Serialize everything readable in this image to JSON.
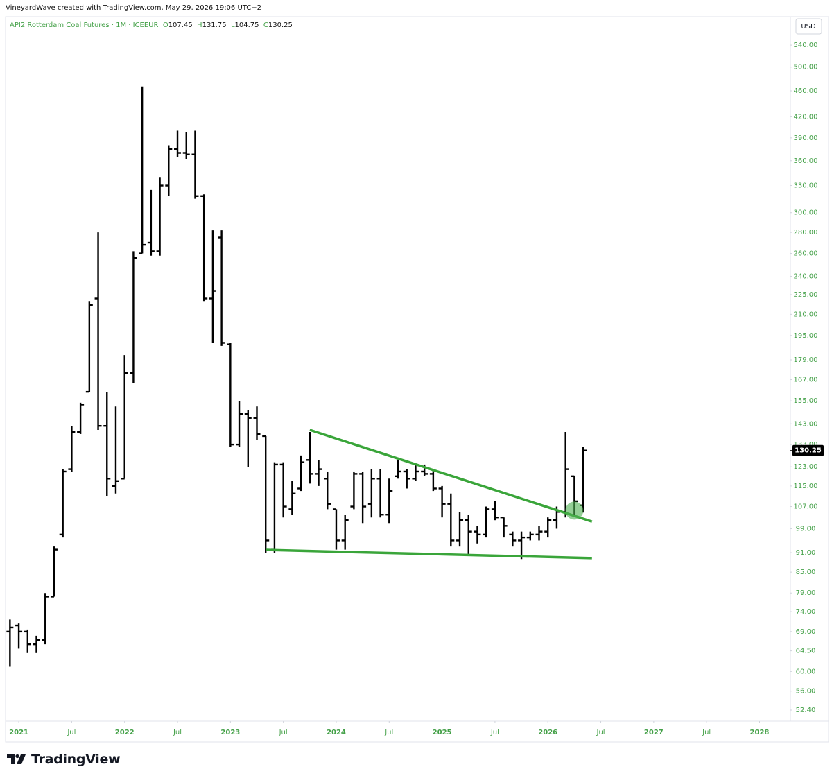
{
  "attribution": "VineyardWave created with TradingView.com, May 29, 2026 19:06 UTC+2",
  "logo_text": "TradingView",
  "chart_data": {
    "type": "ohlc",
    "title": "API2 Rotterdam Coal Futures · 1M · ICEEUR",
    "header_labels": {
      "open": "O",
      "high": "H",
      "low": "L",
      "close": "C"
    },
    "currency": "USD",
    "log_scale": true,
    "grid": false,
    "color": "#000000",
    "axis_color": "#43a047",
    "x": [
      "2020-12",
      "2021-01",
      "2021-02",
      "2021-03",
      "2021-04",
      "2021-05",
      "2021-06",
      "2021-07",
      "2021-08",
      "2021-09",
      "2021-10",
      "2021-11",
      "2021-12",
      "2022-01",
      "2022-02",
      "2022-03",
      "2022-04",
      "2022-05",
      "2022-06",
      "2022-07",
      "2022-08",
      "2022-09",
      "2022-10",
      "2022-11",
      "2022-12",
      "2023-01",
      "2023-02",
      "2023-03",
      "2023-04",
      "2023-05",
      "2023-06",
      "2023-07",
      "2023-08",
      "2023-09",
      "2023-10",
      "2023-11",
      "2023-12",
      "2024-01",
      "2024-02",
      "2024-03",
      "2024-04",
      "2024-05",
      "2024-06",
      "2024-07",
      "2024-08",
      "2024-09",
      "2024-10",
      "2024-11",
      "2024-12",
      "2025-01",
      "2025-02",
      "2025-03",
      "2025-04",
      "2025-05",
      "2025-06",
      "2025-07",
      "2025-08",
      "2025-09",
      "2025-10",
      "2025-11",
      "2025-12",
      "2026-01",
      "2026-02",
      "2026-03",
      "2026-04",
      "2026-05"
    ],
    "open": [
      69,
      70.5,
      69,
      66,
      67,
      78,
      97,
      122,
      139,
      160,
      222,
      142,
      115,
      118,
      171,
      260,
      270,
      262,
      330,
      375,
      370,
      368,
      318,
      222,
      275,
      189,
      133,
      148,
      146,
      137,
      92,
      124,
      106,
      114,
      126,
      120,
      118,
      106,
      95,
      107,
      120,
      108,
      118,
      104,
      119,
      121,
      118,
      121,
      120,
      114,
      108,
      95,
      102,
      98,
      97,
      106,
      103,
      97,
      95,
      96,
      97,
      98,
      102,
      105,
      119,
      107.45
    ],
    "high": [
      72,
      71,
      69.5,
      68,
      79,
      93,
      122,
      142,
      154,
      220,
      280,
      160,
      152,
      182,
      262,
      467,
      325,
      340,
      380,
      400,
      398,
      400,
      320,
      282,
      282,
      190,
      155,
      150,
      152,
      137,
      125,
      125,
      117,
      128,
      139,
      126,
      121,
      106,
      104,
      121,
      121,
      122,
      122,
      118,
      126,
      122,
      124,
      124,
      122,
      115,
      112,
      105,
      104,
      100,
      107,
      109,
      103,
      98,
      98,
      98,
      100,
      103,
      107,
      139,
      119,
      131.75
    ],
    "low": [
      61,
      65,
      64,
      64,
      66,
      78,
      96,
      121,
      138,
      160,
      140,
      111,
      112,
      118,
      165,
      260,
      258,
      258,
      318,
      365,
      362,
      315,
      220,
      190,
      188,
      132,
      132,
      123,
      135,
      91,
      91,
      103,
      104,
      113,
      116,
      115,
      106,
      92,
      92,
      106,
      101,
      103,
      103,
      101,
      118,
      114,
      117,
      119,
      113,
      103,
      93,
      93,
      90,
      94,
      96,
      102,
      96,
      93,
      89,
      95,
      95,
      96,
      99,
      103,
      104,
      104.75
    ],
    "close": [
      70,
      69,
      66,
      67,
      78,
      92,
      121,
      139,
      153,
      217,
      142,
      118,
      117,
      171,
      256,
      268,
      262,
      330,
      375,
      370,
      368,
      318,
      222,
      228,
      190,
      133,
      148,
      146,
      138,
      95,
      124,
      107,
      112,
      125,
      120,
      122,
      108,
      95,
      102,
      120,
      107,
      118,
      104,
      113,
      121,
      118,
      121,
      120,
      114,
      108,
      95,
      102,
      98,
      97,
      106,
      103,
      100,
      95,
      96,
      97,
      98,
      102,
      105,
      122,
      109,
      130.25
    ],
    "xlim": [
      "2020-12",
      "2028-04"
    ],
    "xticks": [
      {
        "value": "2021-01",
        "label": "2021"
      },
      {
        "value": "2021-07",
        "label": "Jul"
      },
      {
        "value": "2022-01",
        "label": "2022"
      },
      {
        "value": "2022-07",
        "label": "Jul"
      },
      {
        "value": "2023-01",
        "label": "2023"
      },
      {
        "value": "2023-07",
        "label": "Jul"
      },
      {
        "value": "2024-01",
        "label": "2024"
      },
      {
        "value": "2024-07",
        "label": "Jul"
      },
      {
        "value": "2025-01",
        "label": "2025"
      },
      {
        "value": "2025-07",
        "label": "Jul"
      },
      {
        "value": "2026-01",
        "label": "2026"
      },
      {
        "value": "2026-07",
        "label": "Jul"
      },
      {
        "value": "2027-01",
        "label": "2027"
      },
      {
        "value": "2027-07",
        "label": "Jul"
      },
      {
        "value": "2028-01",
        "label": "2028"
      }
    ],
    "ylim": [
      50.4,
      591
    ],
    "yticks": [
      {
        "value": 540,
        "label": "540.00"
      },
      {
        "value": 500,
        "label": "500.00"
      },
      {
        "value": 460,
        "label": "460.00"
      },
      {
        "value": 420,
        "label": "420.00"
      },
      {
        "value": 390,
        "label": "390.00"
      },
      {
        "value": 360,
        "label": "360.00"
      },
      {
        "value": 330,
        "label": "330.00"
      },
      {
        "value": 300,
        "label": "300.00"
      },
      {
        "value": 280,
        "label": "280.00"
      },
      {
        "value": 260,
        "label": "260.00"
      },
      {
        "value": 240,
        "label": "240.00"
      },
      {
        "value": 225,
        "label": "225.00"
      },
      {
        "value": 210,
        "label": "210.00"
      },
      {
        "value": 195,
        "label": "195.00"
      },
      {
        "value": 179,
        "label": "179.00"
      },
      {
        "value": 167,
        "label": "167.00"
      },
      {
        "value": 155,
        "label": "155.00"
      },
      {
        "value": 143,
        "label": "143.00"
      },
      {
        "value": 133,
        "label": "133.00"
      },
      {
        "value": 123,
        "label": "123.00"
      },
      {
        "value": 115,
        "label": "115.00"
      },
      {
        "value": 107,
        "label": "107.00"
      },
      {
        "value": 99,
        "label": "99.00"
      },
      {
        "value": 91,
        "label": "91.00"
      },
      {
        "value": 85,
        "label": "85.00"
      },
      {
        "value": 79,
        "label": "79.00"
      },
      {
        "value": 74,
        "label": "74.00"
      },
      {
        "value": 69,
        "label": "69.00"
      },
      {
        "value": 64.5,
        "label": "64.50"
      },
      {
        "value": 60,
        "label": "60.00"
      },
      {
        "value": 56,
        "label": "56.00"
      },
      {
        "value": 52.4,
        "label": "52.40"
      }
    ],
    "trendlines": [
      {
        "color": "#3aa53a",
        "x": [
          "2023-10",
          "2026-06"
        ],
        "y": [
          140,
          101.5
        ]
      },
      {
        "color": "#3aa53a",
        "x": [
          "2023-05",
          "2026-06"
        ],
        "y": [
          91.9,
          89.3
        ]
      }
    ],
    "highlight": {
      "x": "2026-04",
      "y": 105.5,
      "color": "#4caf50"
    }
  }
}
